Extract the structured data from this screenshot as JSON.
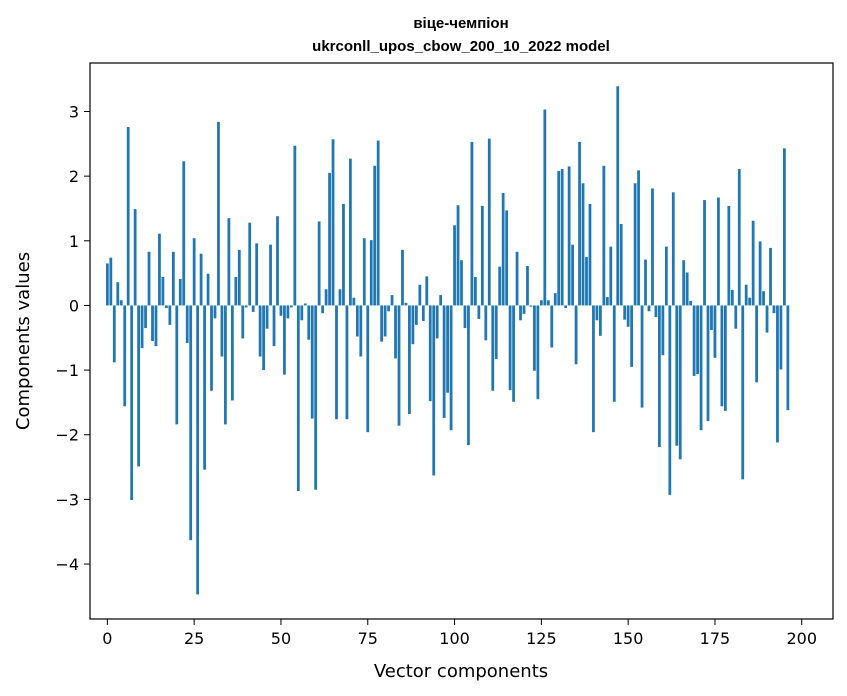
{
  "chart_data": {
    "type": "bar",
    "title": "віце-чемпіон",
    "subtitle": "ukrconll_upos_cbow_200_10_2022 model",
    "xlabel": "Vector components",
    "ylabel": "Components values",
    "xlim": [
      -5,
      209
    ],
    "ylim": [
      -4.85,
      3.75
    ],
    "xticks": [
      0,
      25,
      50,
      75,
      100,
      125,
      150,
      175,
      200
    ],
    "yticks": [
      -4,
      -3,
      -2,
      -1,
      0,
      1,
      2,
      3
    ],
    "x_tick_labels": [
      "0",
      "25",
      "50",
      "75",
      "100",
      "125",
      "150",
      "175",
      "200"
    ],
    "y_tick_labels": [
      "−4",
      "−3",
      "−2",
      "−1",
      "0",
      "1",
      "2",
      "3"
    ],
    "grid": false,
    "bar_color": "#1f77b4",
    "values": [
      0.65,
      0.74,
      -0.88,
      0.36,
      0.08,
      -1.56,
      2.76,
      -3.01,
      1.49,
      -2.49,
      -0.66,
      -0.35,
      0.83,
      -0.55,
      -0.63,
      1.11,
      0.44,
      -0.04,
      -0.3,
      0.83,
      -1.84,
      0.41,
      2.23,
      -0.58,
      -3.63,
      1.04,
      -4.47,
      0.8,
      -2.54,
      0.49,
      -1.32,
      -0.2,
      2.84,
      -0.79,
      -1.84,
      1.35,
      -1.47,
      0.44,
      0.86,
      -0.51,
      -0.03,
      1.28,
      -0.1,
      0.96,
      -0.79,
      -1.0,
      -0.36,
      0.94,
      -0.63,
      1.38,
      -0.16,
      -1.07,
      -0.2,
      -0.03,
      2.47,
      -2.87,
      -0.23,
      0.03,
      -0.53,
      -1.75,
      -2.85,
      1.3,
      -0.12,
      0.25,
      2.05,
      2.57,
      -1.76,
      0.25,
      1.57,
      -1.76,
      2.27,
      0.12,
      -0.48,
      -0.79,
      1.04,
      -1.96,
      1.01,
      2.16,
      2.55,
      -0.56,
      -0.48,
      -0.09,
      0.16,
      -0.82,
      -1.86,
      0.86,
      0.04,
      -1.68,
      -0.6,
      -0.3,
      0.32,
      -0.24,
      0.45,
      -1.48,
      -2.63,
      -0.51,
      0.16,
      -1.74,
      -1.35,
      -1.93,
      1.24,
      1.55,
      0.7,
      -0.35,
      -2.16,
      2.53,
      0.44,
      -0.21,
      1.54,
      -0.54,
      2.58,
      -1.32,
      -0.83,
      0.6,
      1.74,
      1.47,
      -1.31,
      -1.49,
      0.83,
      -0.23,
      -0.13,
      0.61,
      -0.02,
      -1.01,
      -1.45,
      0.08,
      3.03,
      0.08,
      -0.65,
      0.19,
      2.08,
      2.11,
      -0.04,
      2.15,
      0.94,
      -0.91,
      2.53,
      1.89,
      0.75,
      1.57,
      -1.96,
      -0.23,
      -0.47,
      2.16,
      0.13,
      0.91,
      -1.49,
      3.39,
      1.26,
      -0.22,
      -0.33,
      -0.95,
      1.89,
      2.09,
      -1.58,
      0.71,
      -0.09,
      1.81,
      -0.18,
      -2.19,
      -0.77,
      0.91,
      -2.93,
      1.75,
      -2.17,
      -2.38,
      0.7,
      0.51,
      0.07,
      -1.09,
      -1.06,
      -1.93,
      1.63,
      -1.79,
      -0.38,
      -0.81,
      1.67,
      -1.56,
      -1.63,
      1.54,
      0.24,
      -0.36,
      2.11,
      -2.69,
      0.32,
      0.12,
      1.31,
      -1.19,
      0.99,
      0.22,
      -0.42,
      0.89,
      -0.12,
      -2.12,
      -0.99,
      2.43,
      -1.62
    ]
  }
}
